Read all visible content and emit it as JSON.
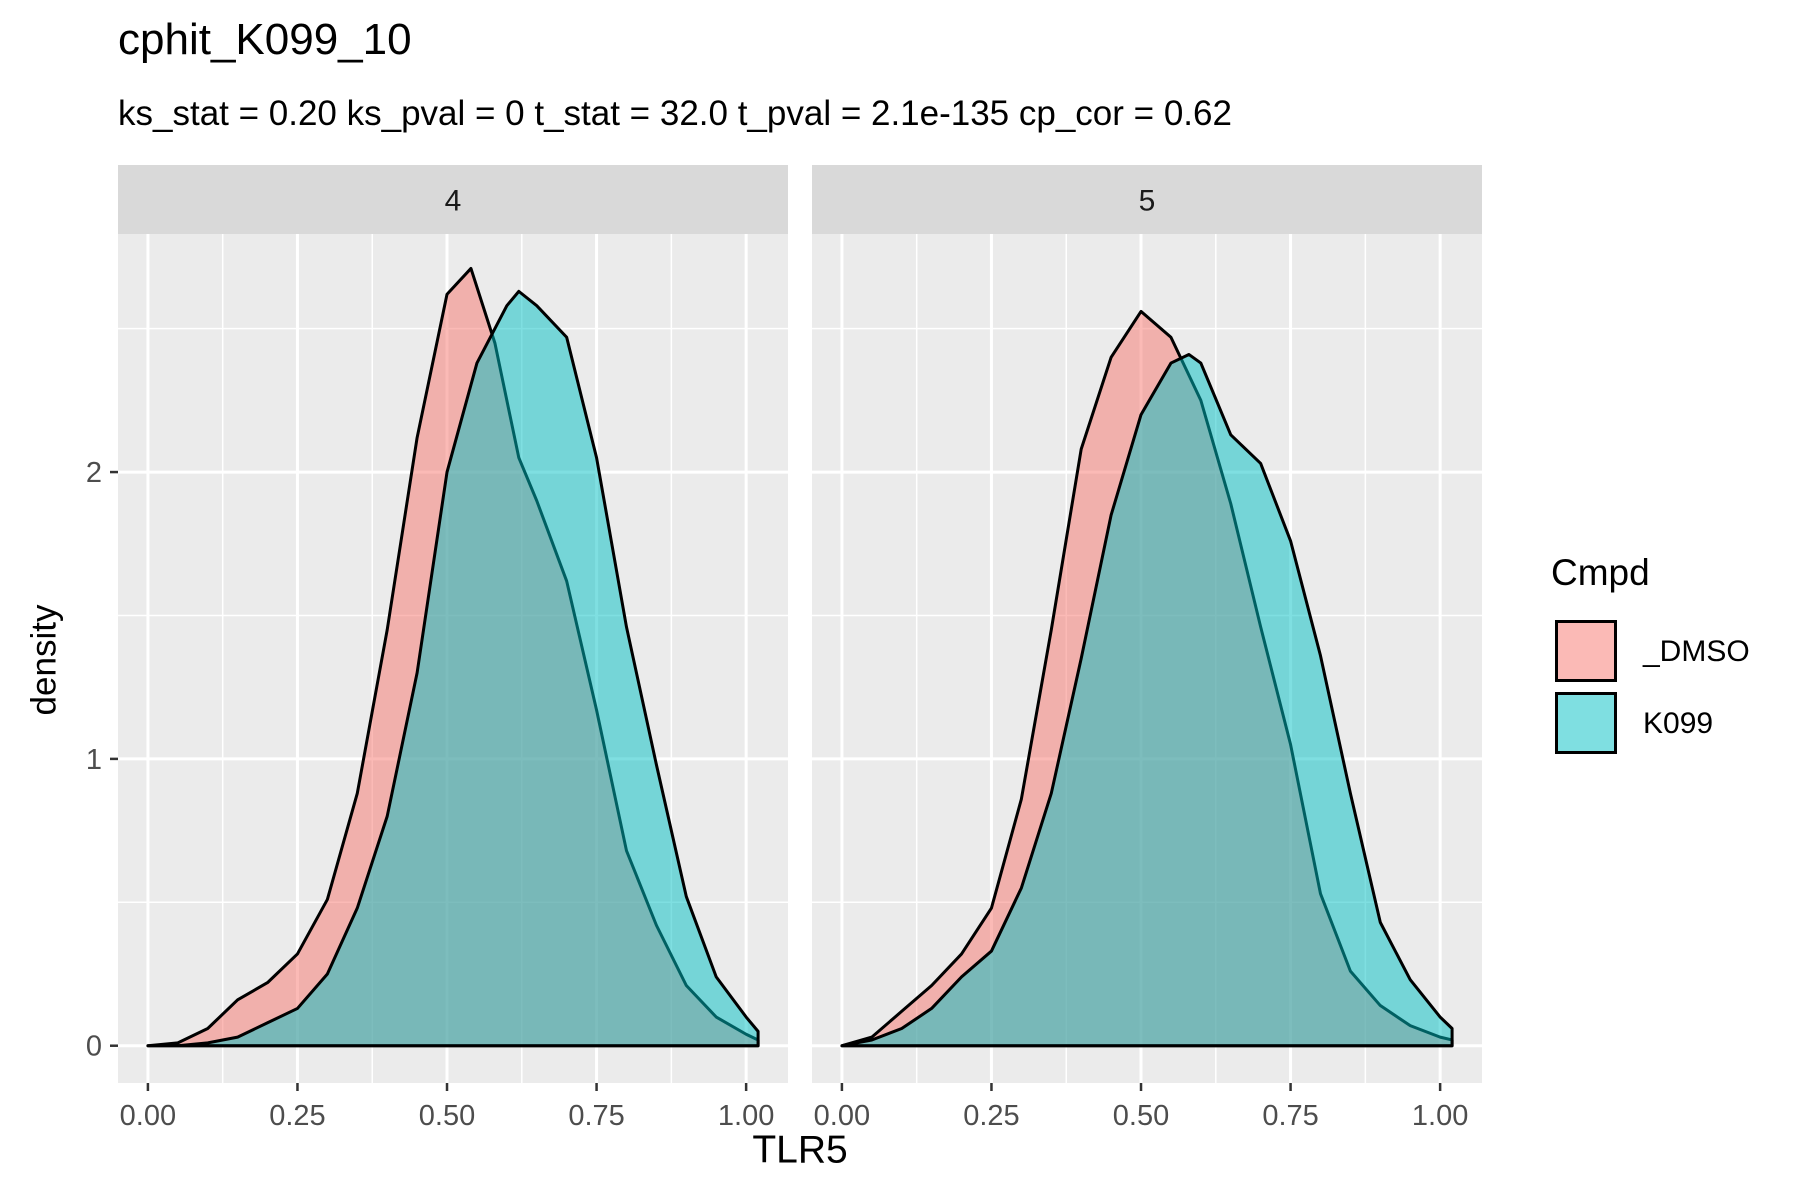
{
  "title": "cphit_K099_10",
  "subtitle": "ks_stat = 0.20 ks_pval = 0 t_stat = 32.0 t_pval = 2.1e-135 cp_cor = 0.62",
  "chart_data": {
    "type": "area",
    "subtype": "faceted density",
    "xlabel": "TLR5",
    "ylabel": "density",
    "xlim": [
      -0.05,
      1.07
    ],
    "ylim": [
      -0.13,
      2.83
    ],
    "x_ticks": [
      "0.00",
      "0.25",
      "0.50",
      "0.75",
      "1.00"
    ],
    "y_ticks": [
      "0",
      "1",
      "2"
    ],
    "grid": true,
    "legend": {
      "title": "Cmpd",
      "position": "right",
      "entries": [
        {
          "label": "_DMSO",
          "color": "#F8766D"
        },
        {
          "label": "K099",
          "color": "#00BFC4"
        }
      ]
    },
    "facets": [
      {
        "label": "4",
        "series": [
          {
            "name": "_DMSO",
            "color": "#F8766D",
            "x": [
              0.0,
              0.05,
              0.1,
              0.15,
              0.2,
              0.25,
              0.3,
              0.35,
              0.4,
              0.45,
              0.5,
              0.54,
              0.58,
              0.62,
              0.65,
              0.7,
              0.75,
              0.8,
              0.85,
              0.9,
              0.95,
              1.0,
              1.02
            ],
            "y": [
              0.0,
              0.01,
              0.06,
              0.16,
              0.22,
              0.32,
              0.51,
              0.88,
              1.45,
              2.12,
              2.62,
              2.71,
              2.45,
              2.05,
              1.9,
              1.62,
              1.17,
              0.68,
              0.42,
              0.21,
              0.1,
              0.04,
              0.02
            ]
          },
          {
            "name": "K099",
            "color": "#00BFC4",
            "x": [
              0.0,
              0.05,
              0.1,
              0.15,
              0.2,
              0.25,
              0.3,
              0.35,
              0.4,
              0.45,
              0.5,
              0.55,
              0.6,
              0.62,
              0.65,
              0.7,
              0.75,
              0.8,
              0.85,
              0.9,
              0.95,
              1.0,
              1.02
            ],
            "y": [
              0.0,
              0.0,
              0.01,
              0.03,
              0.08,
              0.13,
              0.25,
              0.48,
              0.8,
              1.3,
              2.0,
              2.38,
              2.58,
              2.63,
              2.58,
              2.47,
              2.05,
              1.46,
              0.98,
              0.52,
              0.24,
              0.1,
              0.05
            ]
          }
        ]
      },
      {
        "label": "5",
        "series": [
          {
            "name": "_DMSO",
            "color": "#F8766D",
            "x": [
              0.0,
              0.05,
              0.1,
              0.15,
              0.2,
              0.25,
              0.3,
              0.35,
              0.4,
              0.45,
              0.5,
              0.55,
              0.6,
              0.65,
              0.7,
              0.75,
              0.8,
              0.85,
              0.9,
              0.95,
              1.0,
              1.02
            ],
            "y": [
              0.0,
              0.03,
              0.12,
              0.21,
              0.32,
              0.48,
              0.86,
              1.45,
              2.08,
              2.4,
              2.56,
              2.47,
              2.25,
              1.89,
              1.46,
              1.05,
              0.53,
              0.26,
              0.14,
              0.07,
              0.03,
              0.02
            ]
          },
          {
            "name": "K099",
            "color": "#00BFC4",
            "x": [
              0.0,
              0.05,
              0.1,
              0.15,
              0.2,
              0.25,
              0.3,
              0.35,
              0.4,
              0.45,
              0.5,
              0.55,
              0.58,
              0.6,
              0.65,
              0.7,
              0.75,
              0.8,
              0.85,
              0.9,
              0.95,
              1.0,
              1.02
            ],
            "y": [
              0.0,
              0.02,
              0.06,
              0.13,
              0.24,
              0.33,
              0.55,
              0.88,
              1.35,
              1.85,
              2.2,
              2.38,
              2.41,
              2.38,
              2.13,
              2.03,
              1.76,
              1.36,
              0.88,
              0.43,
              0.23,
              0.1,
              0.06
            ]
          }
        ]
      }
    ]
  }
}
